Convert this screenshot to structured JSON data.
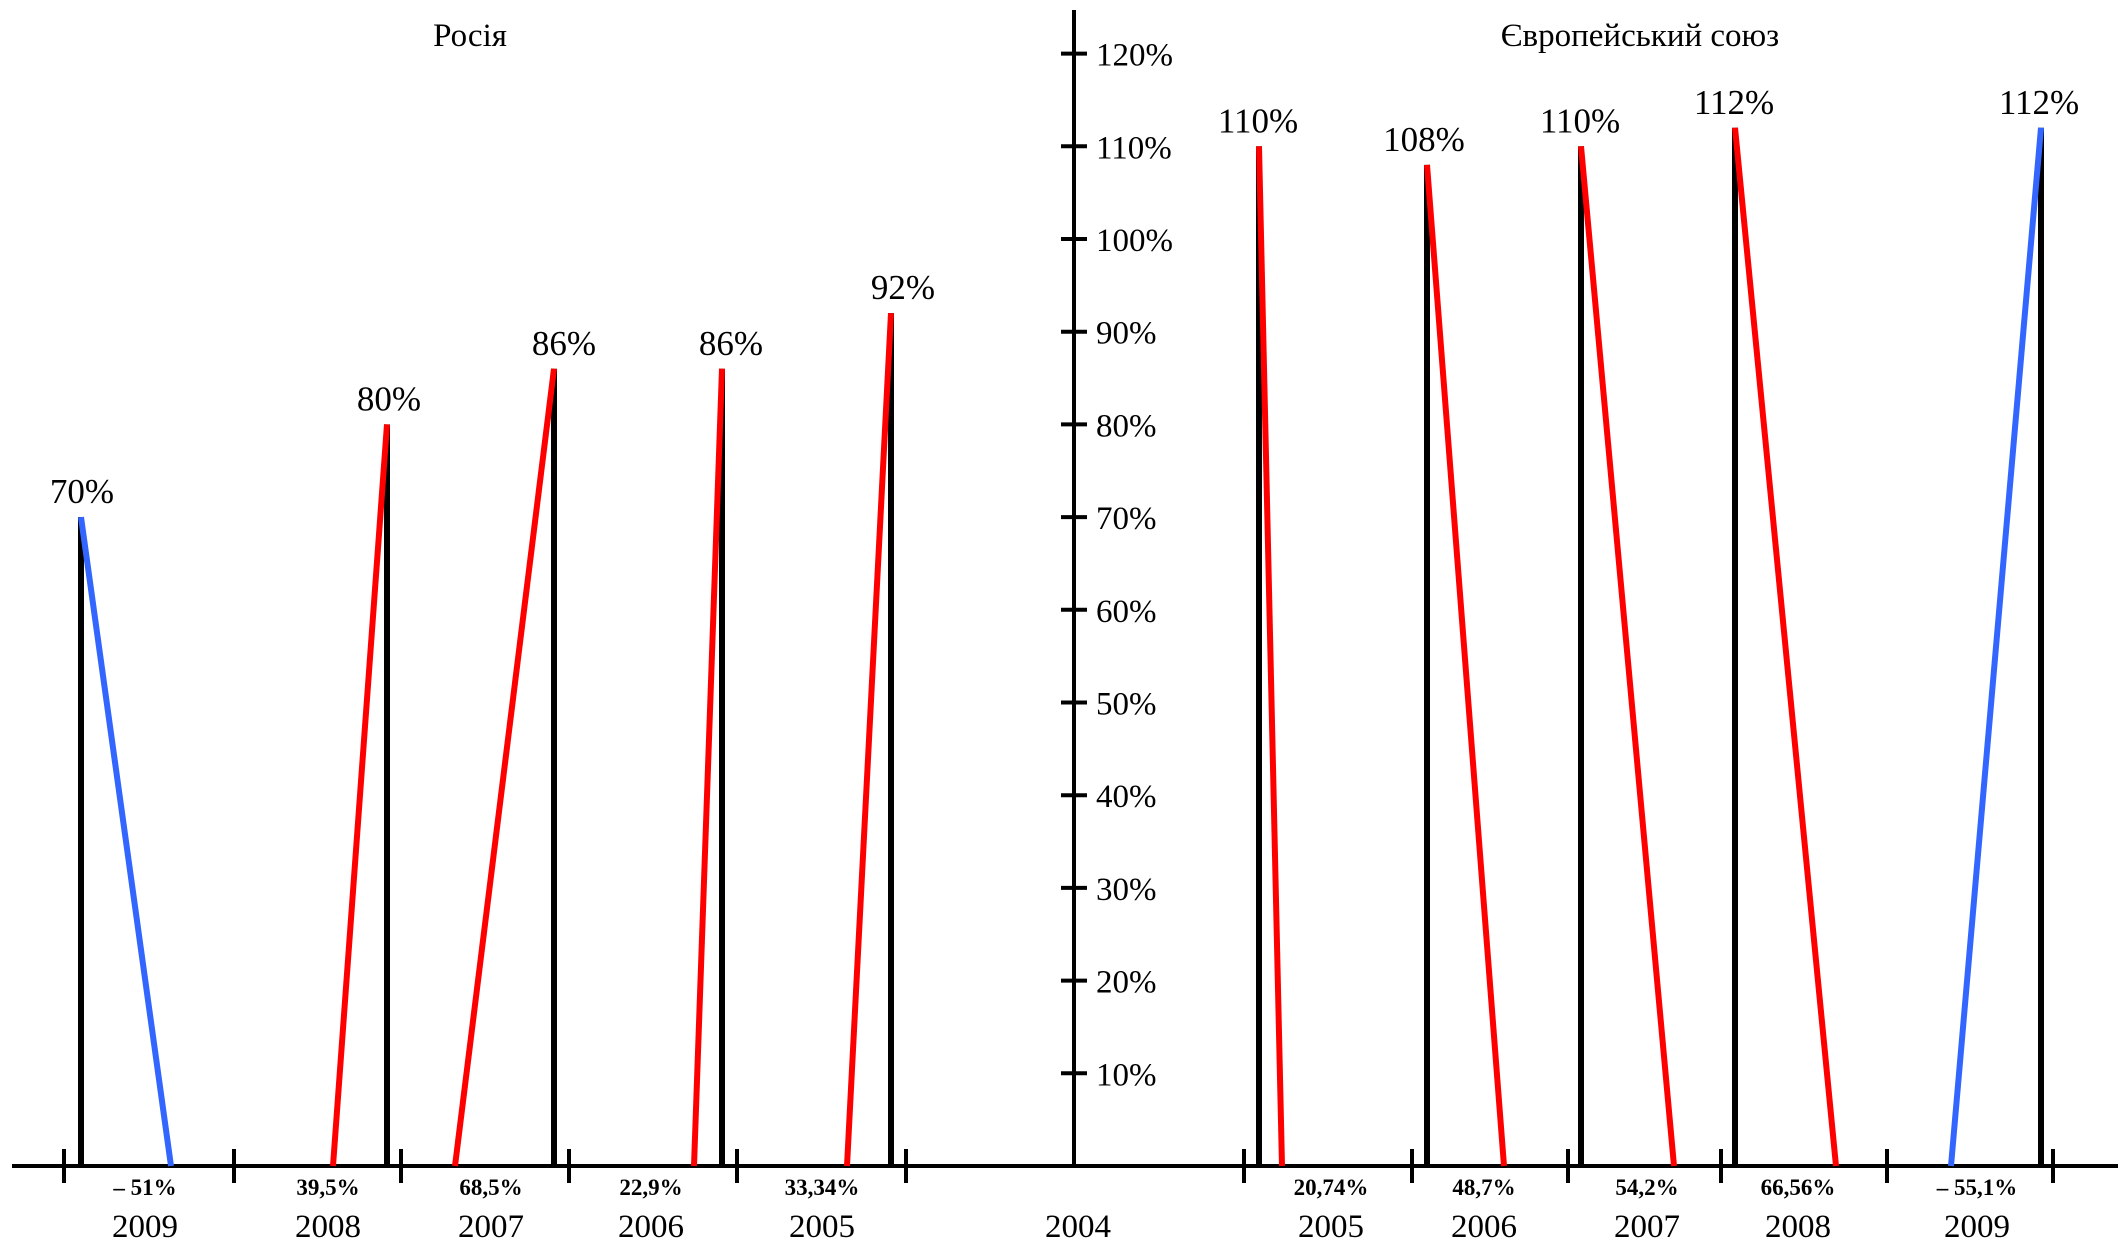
{
  "chart_data": {
    "type": "line",
    "center_year": "2004",
    "y_ticks": [
      "10%",
      "20%",
      "30%",
      "40%",
      "50%",
      "60%",
      "70%",
      "80%",
      "90%",
      "100%",
      "110%",
      "120%"
    ],
    "y_range": [
      0,
      120
    ],
    "colors": {
      "growth": "#ff0000",
      "decline": "#3366ff",
      "axis": "#000000"
    },
    "groups": [
      {
        "title": "Росія",
        "side": "left",
        "items": [
          {
            "year": "2009",
            "value": 70,
            "value_label": "70%",
            "change_label": "– 51%",
            "trend": "decline"
          },
          {
            "year": "2008",
            "value": 80,
            "value_label": "80%",
            "change_label": "39,5%",
            "trend": "growth"
          },
          {
            "year": "2007",
            "value": 86,
            "value_label": "86%",
            "change_label": "68,5%",
            "trend": "growth"
          },
          {
            "year": "2006",
            "value": 86,
            "value_label": "86%",
            "change_label": "22,9%",
            "trend": "growth"
          },
          {
            "year": "2005",
            "value": 92,
            "value_label": "92%",
            "change_label": "33,34%",
            "trend": "growth"
          }
        ]
      },
      {
        "title": "Європейський союз",
        "side": "right",
        "items": [
          {
            "year": "2005",
            "value": 110,
            "value_label": "110%",
            "change_label": "20,74%",
            "trend": "growth"
          },
          {
            "year": "2006",
            "value": 108,
            "value_label": "108%",
            "change_label": "48,7%",
            "trend": "growth"
          },
          {
            "year": "2007",
            "value": 110,
            "value_label": "110%",
            "change_label": "54,2%",
            "trend": "growth"
          },
          {
            "year": "2008",
            "value": 112,
            "value_label": "112%",
            "change_label": "66,56%",
            "trend": "growth"
          },
          {
            "year": "2009",
            "value": 112,
            "value_label": "112%",
            "change_label": "– 55,1%",
            "trend": "decline"
          }
        ]
      }
    ]
  }
}
